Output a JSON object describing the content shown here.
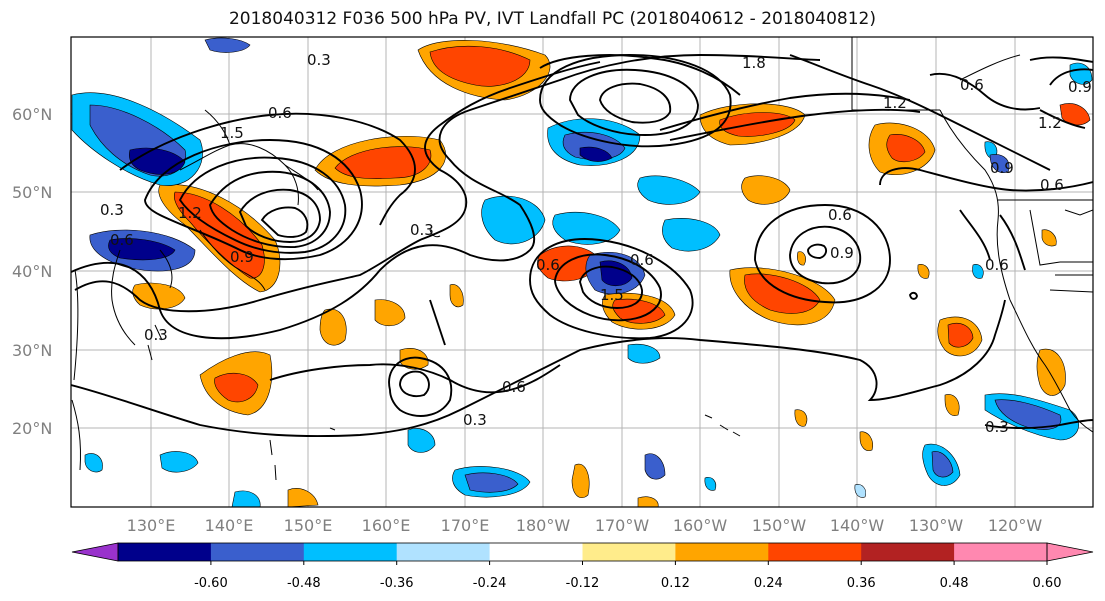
{
  "title": "2018040312 F036 500 hPa PV, IVT Landfall PC (2018040612 - 2018040812)",
  "lat_labels": [
    "60°N",
    "50°N",
    "40°N",
    "30°N",
    "20°N"
  ],
  "lon_labels": [
    "130°E",
    "140°E",
    "150°E",
    "160°E",
    "170°E",
    "180°W",
    "170°W",
    "160°W",
    "150°W",
    "140°W",
    "130°W",
    "120°W"
  ],
  "colorbar": {
    "colors": [
      "#9932cc",
      "#00008b",
      "#3a5fcd",
      "#00bfff",
      "#b0e2ff",
      "#ffffff",
      "#ffec8b",
      "#ffa500",
      "#ff4500",
      "#b22222",
      "#ff88b0",
      "#ff88b0"
    ],
    "tick_labels": [
      "-0.60",
      "-0.48",
      "-0.36",
      "-0.24",
      "-0.12",
      "0.12",
      "0.24",
      "0.36",
      "0.48",
      "0.60"
    ]
  },
  "contour_labels": [
    "0.3",
    "0.6",
    "1.2",
    "1.8",
    "0.9",
    "1.5",
    "0.6",
    "0.3",
    "0.6",
    "0.3",
    "0.6",
    "1.2",
    "0.6",
    "0.9",
    "0.6",
    "0.6",
    "0.9",
    "0.6",
    "1.5",
    "0.3",
    "0.6",
    "0.3",
    "0.3",
    "1.2",
    "0.9"
  ],
  "icons": {
    "colorbar_left": "triangle-left",
    "colorbar_right": "triangle-right"
  }
}
